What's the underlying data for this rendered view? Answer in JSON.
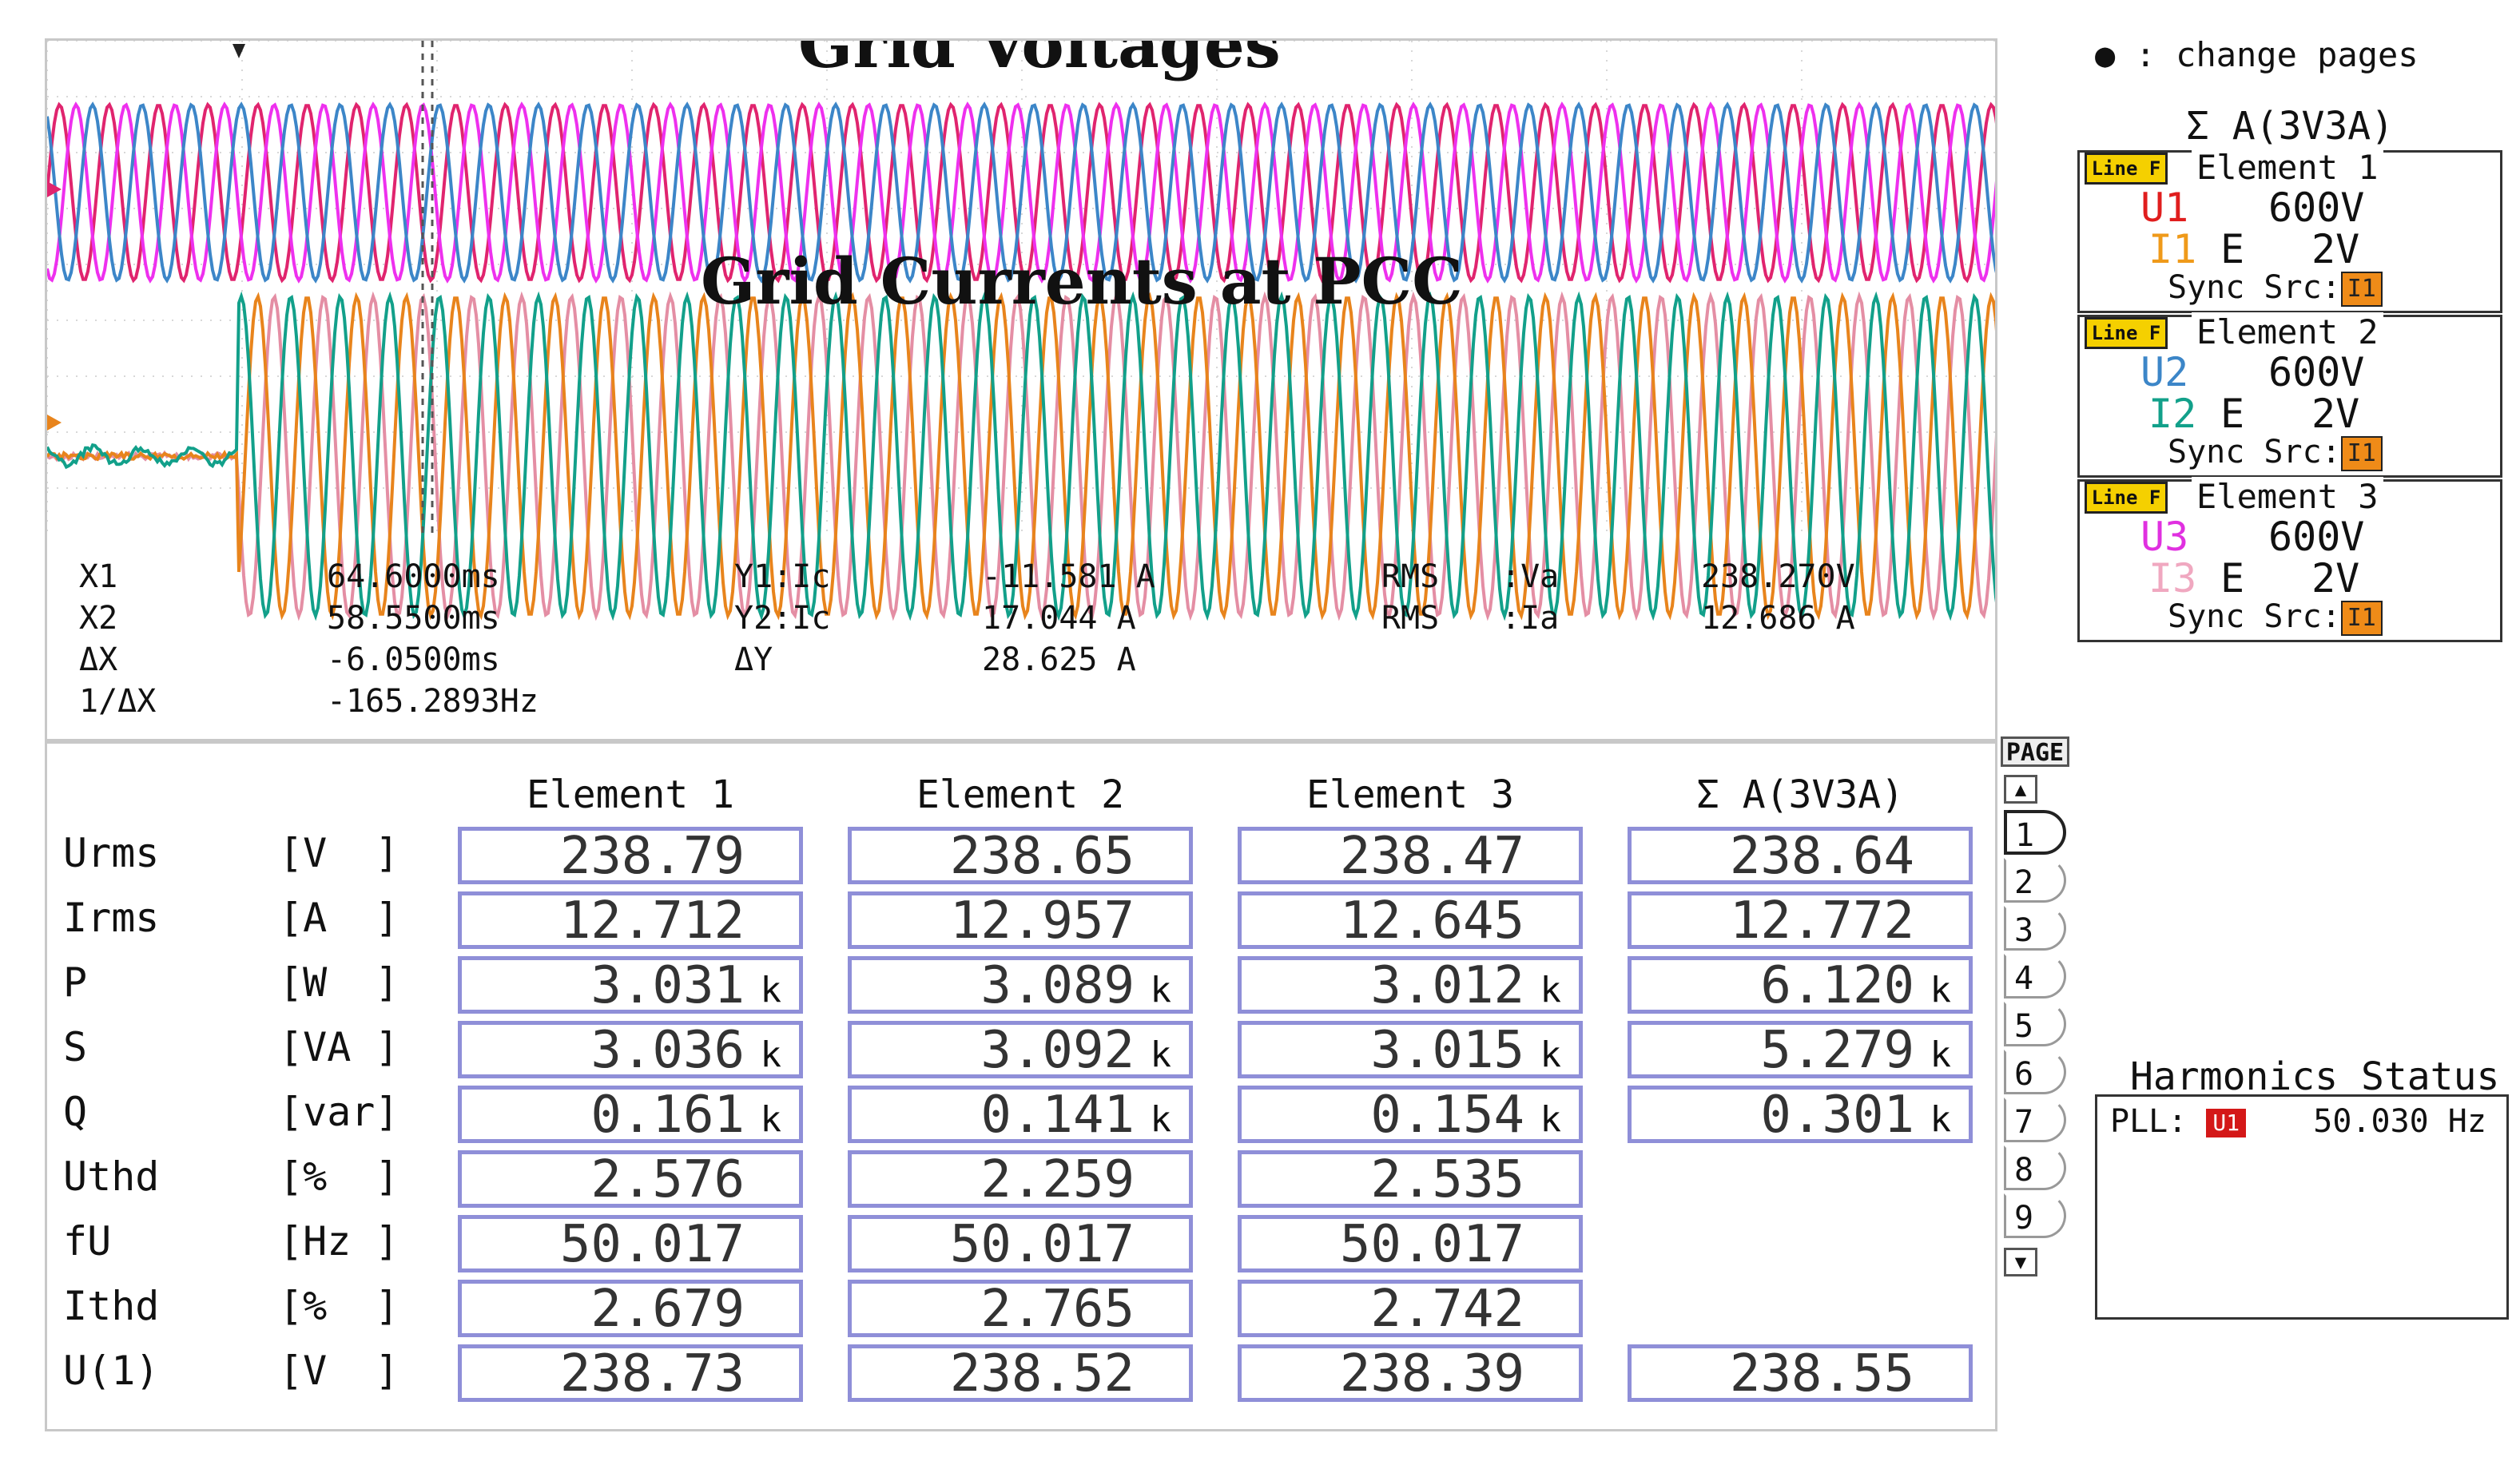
{
  "titles": {
    "voltages": "Grid Voltages",
    "currents": "Grid Currents at PCC"
  },
  "cursors": {
    "x1_label": "X1",
    "x1_value": "64.6000ms",
    "x2_label": "X2",
    "x2_value": "58.5500ms",
    "dx_label": "ΔX",
    "dx_value": "-6.0500ms",
    "inv_dx_label": "1/ΔX",
    "inv_dx_value": "-165.2893Hz",
    "y1_label": "Y1:Ic",
    "y1_value": "-11.581 A",
    "y2_label": "Y2:Ic",
    "y2_value": "17.044 A",
    "dy_label": "ΔY",
    "dy_value": "28.625 A",
    "rms1_label": "RMS",
    "rms1_sig": ":Va",
    "rms1_value": "238.270V",
    "rms2_label": "RMS",
    "rms2_sig": ":Ia",
    "rms2_value": "12.686 A"
  },
  "waveform_colors": {
    "va": "#e0246e",
    "vb": "#ee30ee",
    "vc": "#3c86c8",
    "ia": "#e8841c",
    "ib": "#e48ea4",
    "ic": "#12a08a"
  },
  "table": {
    "columns": [
      "Element  1",
      "Element  2",
      "Element  3",
      "Σ A(3V3A)"
    ],
    "rows": [
      {
        "name": "Urms",
        "unit": "[V  ]",
        "values": [
          "238.79",
          "238.65",
          "238.47",
          "238.64"
        ],
        "suffix": ""
      },
      {
        "name": "Irms",
        "unit": "[A  ]",
        "values": [
          "12.712",
          "12.957",
          "12.645",
          "12.772"
        ],
        "suffix": ""
      },
      {
        "name": "P",
        "unit": "[W  ]",
        "values": [
          "3.031",
          "3.089",
          "3.012",
          "6.120"
        ],
        "suffix": "k"
      },
      {
        "name": "S",
        "unit": "[VA ]",
        "values": [
          "3.036",
          "3.092",
          "3.015",
          "5.279"
        ],
        "suffix": "k"
      },
      {
        "name": "Q",
        "unit": "[var]",
        "values": [
          "0.161",
          "0.141",
          "0.154",
          "0.301"
        ],
        "suffix": "k"
      },
      {
        "name": "Uthd",
        "unit": "[%  ]",
        "values": [
          "2.576",
          "2.259",
          "2.535",
          ""
        ],
        "suffix": ""
      },
      {
        "name": "fU",
        "unit": "[Hz ]",
        "values": [
          "50.017",
          "50.017",
          "50.017",
          ""
        ],
        "suffix": ""
      },
      {
        "name": "Ithd",
        "unit": "[%  ]",
        "values": [
          "2.679",
          "2.765",
          "2.742",
          ""
        ],
        "suffix": ""
      },
      {
        "name": "U(1)",
        "unit": "[V  ]",
        "values": [
          "238.73",
          "238.52",
          "238.39",
          "238.55"
        ],
        "suffix": ""
      }
    ]
  },
  "pagebar": {
    "label": "PAGE",
    "up": "▲",
    "down": "▼",
    "pages": [
      "1",
      "2",
      "3",
      "4",
      "5",
      "6",
      "7",
      "8",
      "9"
    ],
    "active": 0
  },
  "side": {
    "hint_dot": "●",
    "hint": ":  change pages",
    "sigma": "Σ A(3V3A)",
    "linef": "Line F",
    "elements": [
      {
        "name": "Element  1",
        "u": "U1",
        "i": "I1",
        "u_range": "600V",
        "i_mode": "E",
        "i_range": "2V",
        "sync": "Sync Src:",
        "src": "I1",
        "ucolor": "#e01e1e",
        "icolor": "#ef9a1a"
      },
      {
        "name": "Element  2",
        "u": "U2",
        "i": "I2",
        "u_range": "600V",
        "i_mode": "E",
        "i_range": "2V",
        "sync": "Sync Src:",
        "src": "I1",
        "ucolor": "#3c86c8",
        "icolor": "#12a08a"
      },
      {
        "name": "Element  3",
        "u": "U3",
        "i": "I3",
        "u_range": "600V",
        "i_mode": "E",
        "i_range": "2V",
        "sync": "Sync Src:",
        "src": "I1",
        "ucolor": "#e030e0",
        "icolor": "#f0a8c0"
      }
    ]
  },
  "harmonics": {
    "title": "Harmonics Status",
    "pll_label": "PLL:",
    "pll_src": "U1",
    "freq": "50.030  Hz"
  }
}
